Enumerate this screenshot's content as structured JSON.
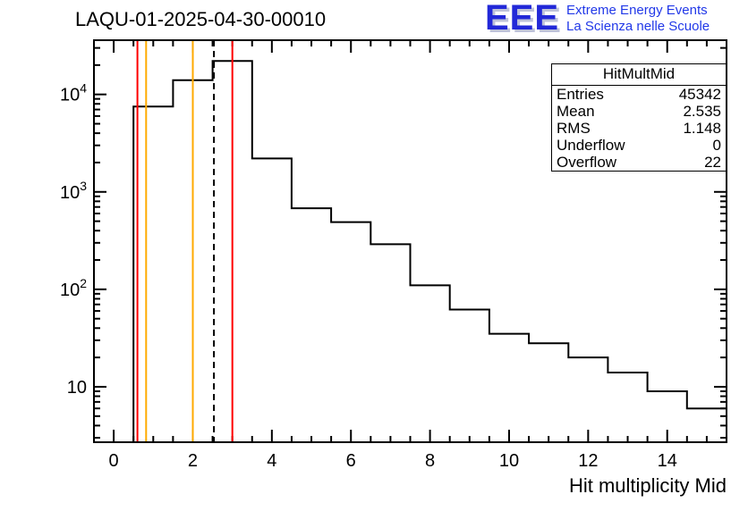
{
  "header": {
    "title": "LAQU-01-2025-04-30-00010"
  },
  "logo": {
    "acronym": "EEE",
    "tagline1": "Extreme Energy Events",
    "tagline2": "La Scienza nelle Scuole",
    "color": "#2228d8",
    "tagline_color": "#2138e8"
  },
  "stats_box": {
    "title": "HitMultMid",
    "rows": [
      {
        "label": "Entries",
        "value": "45342"
      },
      {
        "label": "Mean",
        "value": "2.535"
      },
      {
        "label": "RMS",
        "value": "1.148"
      },
      {
        "label": "Underflow",
        "value": "0"
      },
      {
        "label": "Overflow",
        "value": "22"
      }
    ]
  },
  "chart_data": {
    "type": "bar",
    "subtype": "step-histogram-log-y",
    "title": "LAQU-01-2025-04-30-00010",
    "xlabel": "Hit multiplicity Mid",
    "ylabel": "",
    "x_range": [
      -0.5,
      15.5
    ],
    "y_range_log": [
      2.7,
      36000
    ],
    "x_ticks": [
      0,
      2,
      4,
      6,
      8,
      10,
      12,
      14
    ],
    "x_minor_step": 0.5,
    "y_tick_decades": [
      1,
      2,
      3,
      4
    ],
    "grid": false,
    "bin_width": 1,
    "bin_centers": [
      0,
      1,
      2,
      3,
      4,
      5,
      6,
      7,
      8,
      9,
      10,
      11,
      12,
      13,
      14,
      15
    ],
    "counts": [
      0,
      7500,
      14000,
      22000,
      2200,
      680,
      490,
      290,
      110,
      62,
      35,
      28,
      20,
      14,
      9,
      6
    ],
    "line_color": "#000000",
    "marker_lines": [
      {
        "x": 0.6,
        "color": "#ff0000",
        "style": "solid"
      },
      {
        "x": 0.82,
        "color": "#ffaa00",
        "style": "solid"
      },
      {
        "x": 2.0,
        "color": "#ffaa00",
        "style": "solid"
      },
      {
        "x": 2.535,
        "color": "#000000",
        "style": "dashed"
      },
      {
        "x": 3.0,
        "color": "#ff0000",
        "style": "solid"
      }
    ]
  }
}
